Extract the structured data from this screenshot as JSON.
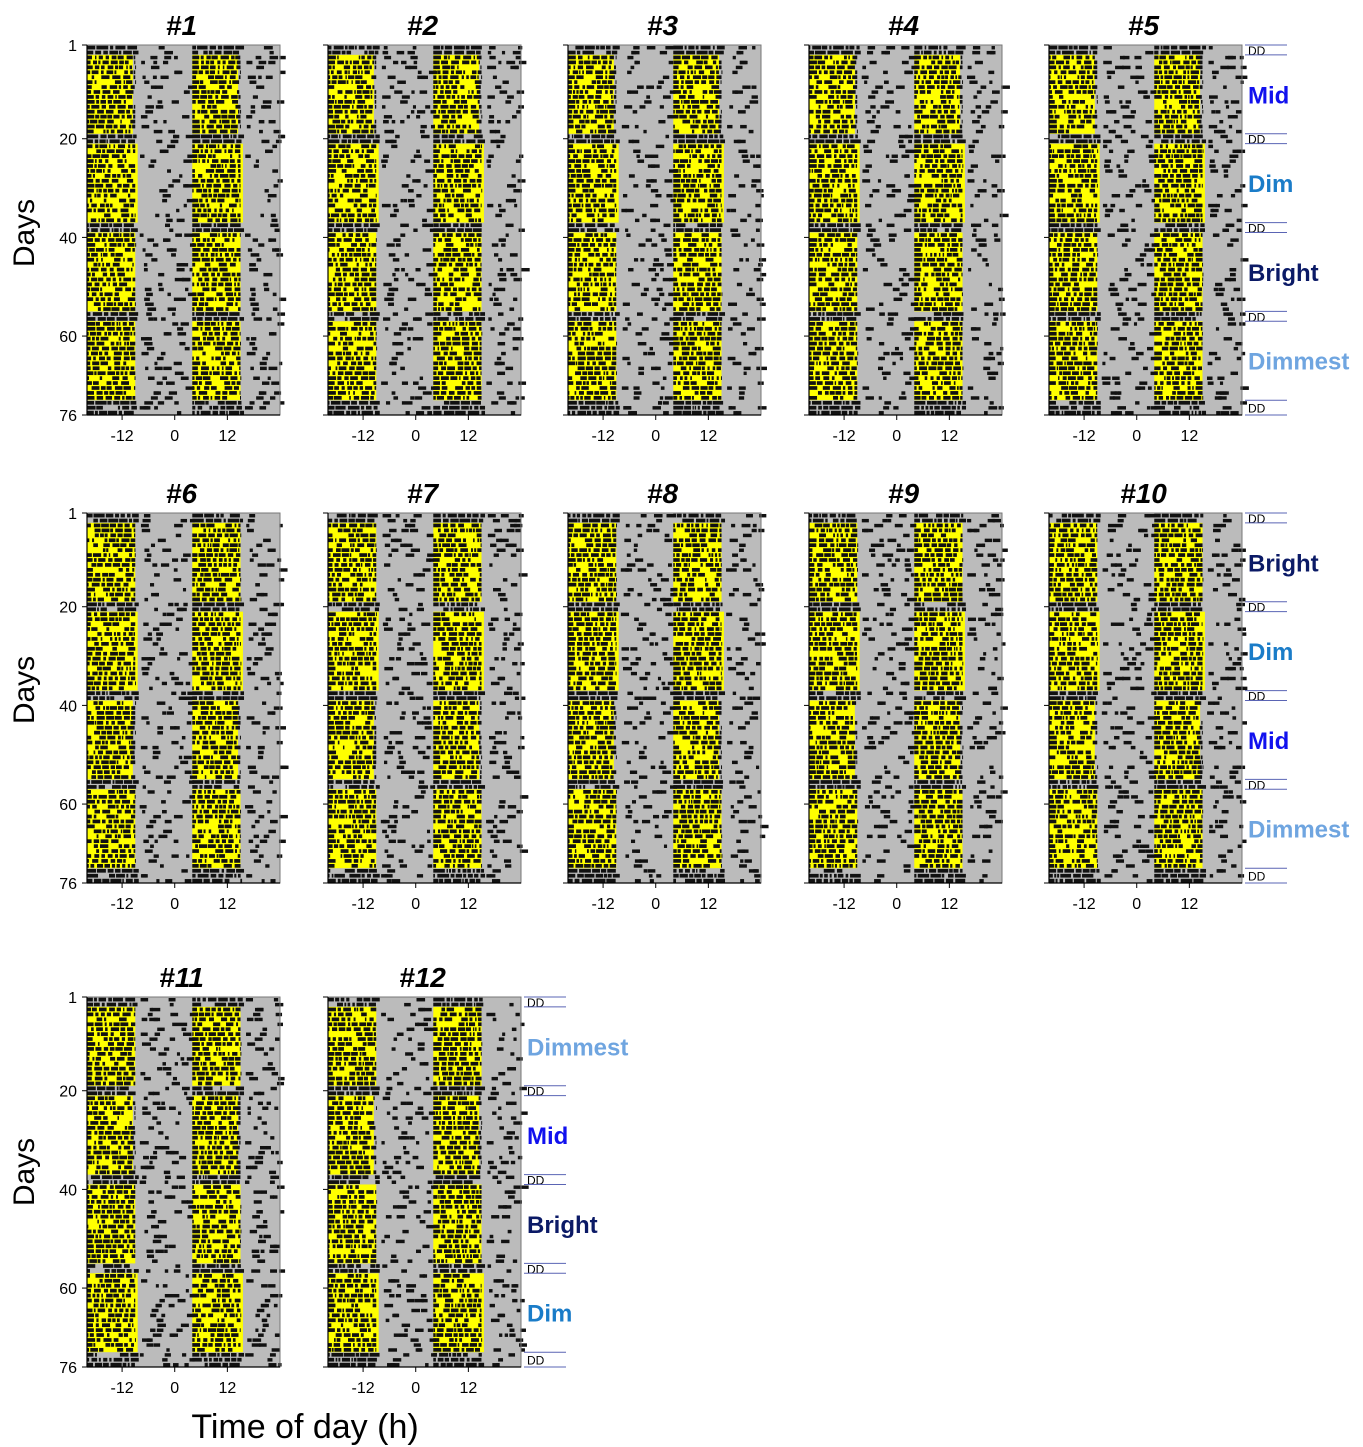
{
  "figure": {
    "y_axis_label": "Days",
    "x_axis_label": "Time of day (h)"
  },
  "chart_data": {
    "type": "heatmap",
    "subtype": "double-plotted actogram",
    "x_ticks": [
      -12,
      0,
      12
    ],
    "y_ticks": [
      1,
      20,
      40,
      60,
      76
    ],
    "xlim": [
      -20,
      24
    ],
    "ylim": [
      1,
      76
    ],
    "phases_days": [
      [
        1,
        3
      ],
      [
        3,
        19
      ],
      [
        19,
        21
      ],
      [
        21,
        37
      ],
      [
        37,
        39
      ],
      [
        39,
        55
      ],
      [
        55,
        57
      ],
      [
        57,
        73
      ],
      [
        73,
        76
      ]
    ],
    "light_window_h": [
      -20,
      -9
    ],
    "colors": {
      "activity": "#111111",
      "light": "#ffff00",
      "background": "#bbbbbb",
      "Bright": "#0b1a66",
      "Mid": "#1111ee",
      "Dim": "#1a7cc8",
      "Dimmest": "#6fa5e0",
      "DD": "#000000"
    },
    "dd_label": "DD",
    "panels": [
      {
        "id": "#1",
        "order": [
          "Mid",
          "Dim",
          "Bright",
          "Dimmest"
        ],
        "show_conditions": false
      },
      {
        "id": "#2",
        "order": [
          "Mid",
          "Dim",
          "Bright",
          "Dimmest"
        ],
        "show_conditions": false
      },
      {
        "id": "#3",
        "order": [
          "Mid",
          "Dim",
          "Bright",
          "Dimmest"
        ],
        "show_conditions": false
      },
      {
        "id": "#4",
        "order": [
          "Mid",
          "Dim",
          "Bright",
          "Dimmest"
        ],
        "show_conditions": false
      },
      {
        "id": "#5",
        "order": [
          "Mid",
          "Dim",
          "Bright",
          "Dimmest"
        ],
        "show_conditions": true
      },
      {
        "id": "#6",
        "order": [
          "Bright",
          "Dim",
          "Mid",
          "Dimmest"
        ],
        "show_conditions": false
      },
      {
        "id": "#7",
        "order": [
          "Bright",
          "Dim",
          "Mid",
          "Dimmest"
        ],
        "show_conditions": false
      },
      {
        "id": "#8",
        "order": [
          "Bright",
          "Dim",
          "Mid",
          "Dimmest"
        ],
        "show_conditions": false
      },
      {
        "id": "#9",
        "order": [
          "Bright",
          "Dim",
          "Mid",
          "Dimmest"
        ],
        "show_conditions": false
      },
      {
        "id": "#10",
        "order": [
          "Bright",
          "Dim",
          "Mid",
          "Dimmest"
        ],
        "show_conditions": true
      },
      {
        "id": "#11",
        "order": [
          "Dimmest",
          "Mid",
          "Bright",
          "Dim"
        ],
        "show_conditions": false
      },
      {
        "id": "#12",
        "order": [
          "Dimmest",
          "Mid",
          "Bright",
          "Dim"
        ],
        "show_conditions": true
      }
    ]
  }
}
